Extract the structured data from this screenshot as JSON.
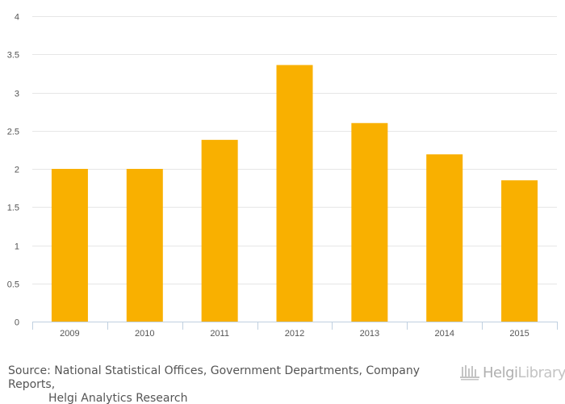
{
  "chart_data": {
    "type": "bar",
    "title": "",
    "xlabel": "",
    "ylabel": "",
    "categories": [
      "2009",
      "2010",
      "2011",
      "2012",
      "2013",
      "2014",
      "2015"
    ],
    "values": [
      2.0,
      2.0,
      2.38,
      3.36,
      2.6,
      2.19,
      1.85
    ],
    "ylim": [
      0,
      4
    ],
    "yticks": [
      "0",
      "0.5",
      "1",
      "1.5",
      "2",
      "2.5",
      "3",
      "3.5",
      "4"
    ],
    "bar_color": "#f9b000",
    "grid": true
  },
  "footer": {
    "source_line1": "Source: National Statistical Offices, Government Departments, Company Reports,",
    "source_line2": "Helgi Analytics Research"
  },
  "brand": {
    "part1": "Helgi",
    "part2": "Library",
    "dot": "."
  },
  "colors": {
    "grid": "#e6e6e6",
    "axis": "#c0d0e0",
    "text": "#555555"
  }
}
